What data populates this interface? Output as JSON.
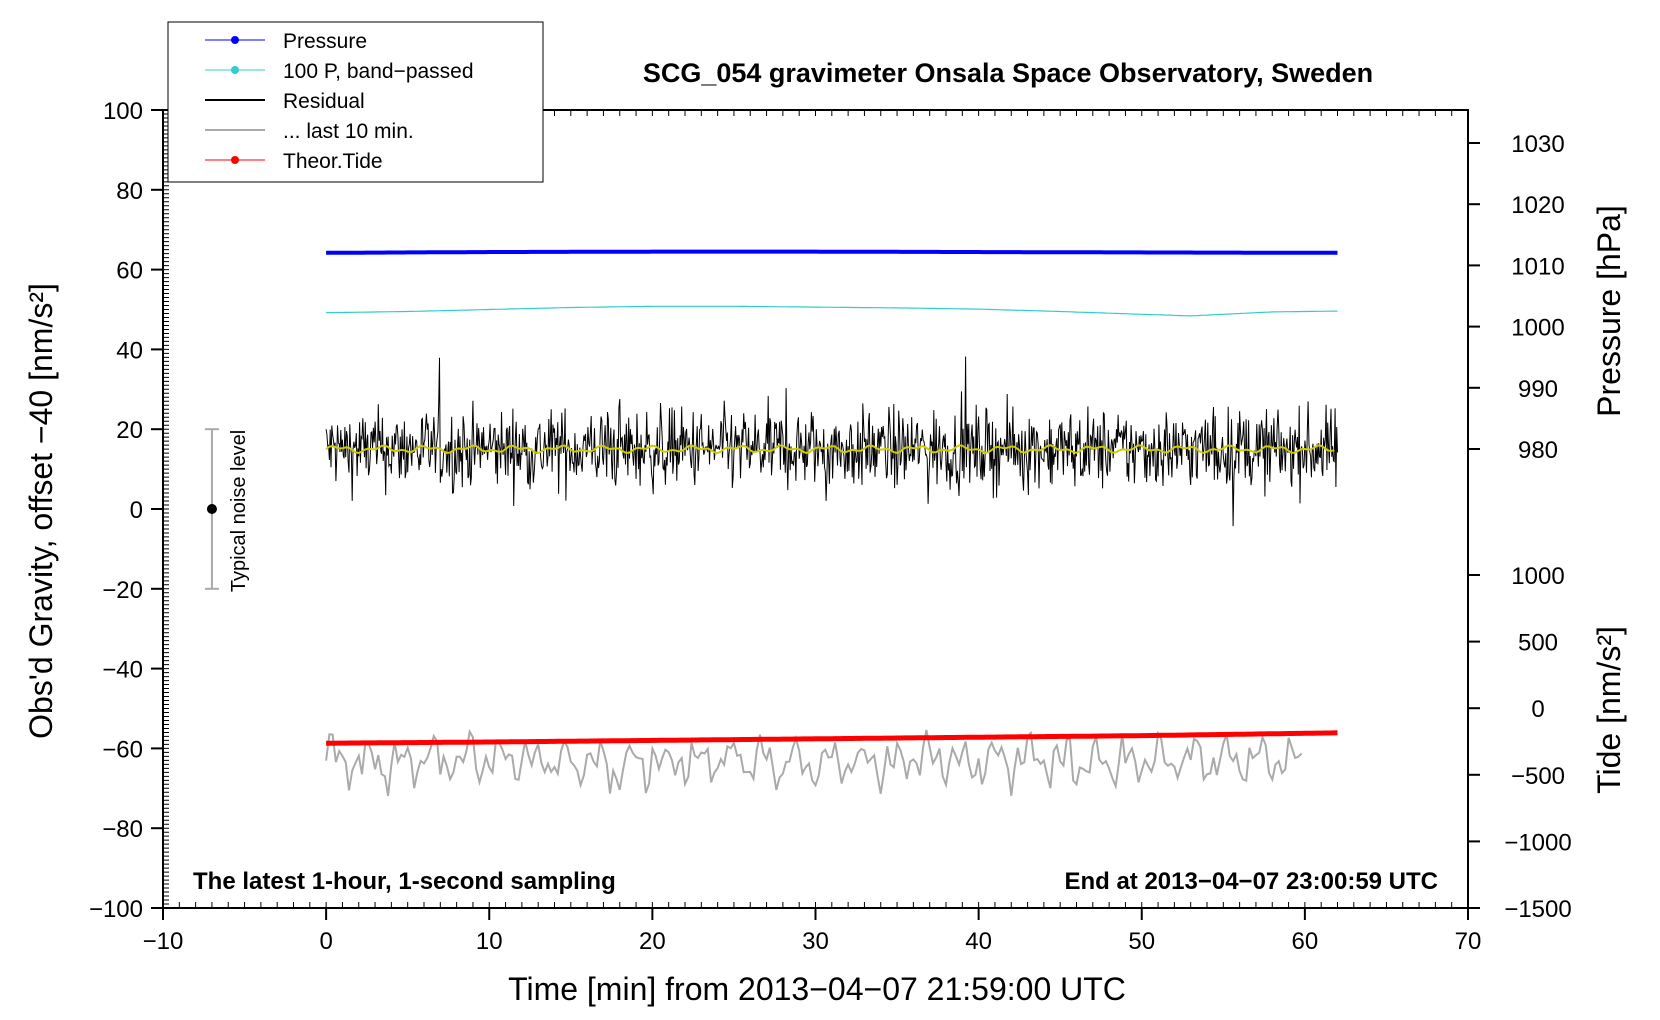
{
  "chart_data": {
    "type": "line",
    "title": "SCG_054 gravimeter Onsala Space Observatory, Sweden",
    "xlabel": "Time [min] from 2013−04−07 21:59:00 UTC",
    "ylabel_left": "Obs'd Gravity, offset −40 [nm/s²]",
    "ylabel_right_top": "Pressure [hPa]",
    "ylabel_right_bottom": "Tide [nm/s²]",
    "xlim": [
      -10,
      70
    ],
    "ylim_left": [
      -100,
      100
    ],
    "pressure_axis": {
      "ticks": [
        980,
        990,
        1000,
        1010,
        1020,
        1030
      ],
      "labels": [
        "980",
        "990",
        "1000",
        "1010",
        "1020",
        "1030"
      ]
    },
    "tide_axis": {
      "ticks": [
        -1500,
        -1000,
        -500,
        0,
        500,
        1000
      ],
      "labels": [
        "−1500",
        "−1000",
        "−500",
        "0",
        "500",
        "1000"
      ]
    },
    "x_ticks": [
      -10,
      0,
      10,
      20,
      30,
      40,
      50,
      60,
      70
    ],
    "x_tick_labels": [
      "−10",
      "0",
      "10",
      "20",
      "30",
      "40",
      "50",
      "60",
      "70"
    ],
    "y_ticks": [
      -100,
      -80,
      -60,
      -40,
      -20,
      0,
      20,
      40,
      60,
      80,
      100
    ],
    "y_tick_labels": [
      "−100",
      "−80",
      "−60",
      "−40",
      "−20",
      "0",
      "20",
      "40",
      "60",
      "80",
      "100"
    ],
    "grid": false,
    "legend_position": "top-left",
    "annotations": {
      "bottom_left": "The latest 1-hour, 1-second sampling",
      "bottom_right": "End at 2013−04−07 23:00:59 UTC",
      "noise_label": "Typical noise level"
    },
    "noise_bar": {
      "x": -7,
      "center": 0,
      "low": -20,
      "high": 20
    },
    "series": [
      {
        "name": "Pressure",
        "color": "#0000ff",
        "axis": "left",
        "x": [
          0,
          10,
          20,
          30,
          40,
          50,
          62
        ],
        "y": [
          64.2,
          64.4,
          64.5,
          64.5,
          64.4,
          64.3,
          64.2
        ]
      },
      {
        "name": "100 P, band−passed",
        "color": "#33cccc",
        "axis": "left",
        "x": [
          0,
          5,
          10,
          15,
          20,
          25,
          30,
          35,
          40,
          45,
          50,
          53,
          55,
          58,
          62
        ],
        "y": [
          49.2,
          49.5,
          50.0,
          50.5,
          50.8,
          50.8,
          50.6,
          50.4,
          50.1,
          49.5,
          48.8,
          48.4,
          48.8,
          49.4,
          49.6
        ]
      },
      {
        "name": "Residual",
        "color": "#000000",
        "axis": "left",
        "x": [
          0,
          62
        ],
        "y": [
          15,
          15
        ],
        "noise_amplitude": 5
      },
      {
        "name": "... last 10 min.",
        "color": "#aaaaaa",
        "axis": "left",
        "x": [
          0,
          60
        ],
        "y": [
          -63,
          -63
        ],
        "noise_amplitude": 6
      },
      {
        "name": "Theor.Tide",
        "color": "#ff0000",
        "axis": "left",
        "x": [
          0,
          10,
          20,
          30,
          40,
          50,
          62
        ],
        "y": [
          -58.7,
          -58.4,
          -58.0,
          -57.6,
          -57.2,
          -56.8,
          -56.1
        ]
      }
    ],
    "smoothed_residual": {
      "color": "#cccc00",
      "y": 15
    }
  }
}
